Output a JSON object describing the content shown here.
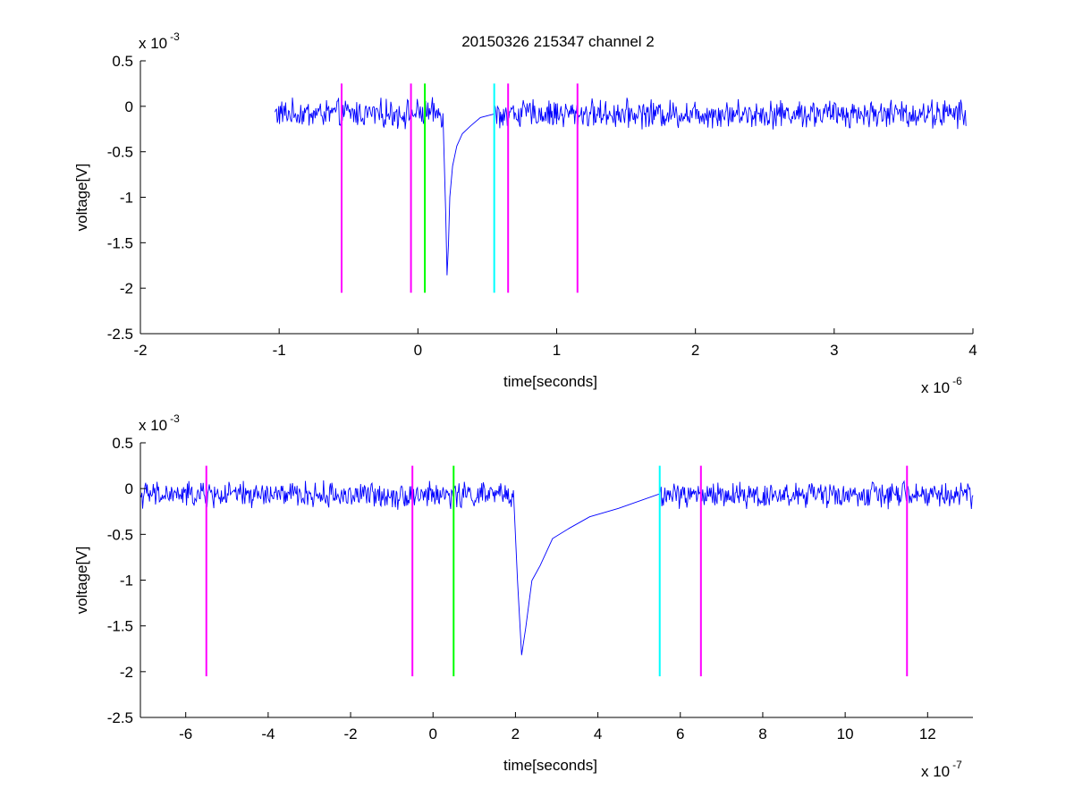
{
  "figure": {
    "title": "20150326 215347 channel 2"
  },
  "chart_data": [
    {
      "type": "line",
      "title": "20150326 215347 channel 2",
      "xlabel": "time[seconds]",
      "ylabel": "voltage[V]",
      "x_exponent_label": "x 10",
      "x_exponent": "-6",
      "y_exponent_label": "x 10",
      "y_exponent": "-3",
      "xlim": [
        -2,
        4
      ],
      "ylim": [
        -2.5,
        0.5
      ],
      "xticks": [
        -2,
        -1,
        0,
        1,
        2,
        3,
        4
      ],
      "yticks": [
        -2.5,
        -2,
        -1.5,
        -1,
        -0.5,
        0,
        0.5
      ],
      "xtick_labels": [
        "-2",
        "-1",
        "0",
        "1",
        "2",
        "3",
        "4"
      ],
      "ytick_labels": [
        "-2.5",
        "-2",
        "-1.5",
        "-1",
        "-0.5",
        "0",
        "0.5"
      ],
      "grid": false,
      "series": [
        {
          "color": "#0000ff",
          "noise_range": [
            -1.03,
            3.95
          ],
          "noise_baseline": -0.08,
          "noise_amplitude": 0.12,
          "points": [
            [
              0.18,
              -0.1
            ],
            [
              0.2,
              -1.2
            ],
            [
              0.21,
              -1.85
            ],
            [
              0.22,
              -1.5
            ],
            [
              0.23,
              -1.0
            ],
            [
              0.25,
              -0.65
            ],
            [
              0.28,
              -0.45
            ],
            [
              0.32,
              -0.3
            ],
            [
              0.38,
              -0.2
            ],
            [
              0.45,
              -0.15
            ],
            [
              0.55,
              -0.1
            ]
          ]
        }
      ],
      "markers": [
        {
          "x": -0.55,
          "y_from": -2.05,
          "y_to": 0.25,
          "color": "#ff00ff"
        },
        {
          "x": -0.05,
          "y_from": -2.05,
          "y_to": 0.25,
          "color": "#ff00ff"
        },
        {
          "x": 0.05,
          "y_from": -2.05,
          "y_to": 0.25,
          "color": "#00ff00"
        },
        {
          "x": 0.55,
          "y_from": -2.05,
          "y_to": 0.25,
          "color": "#00ffff"
        },
        {
          "x": 0.65,
          "y_from": -2.05,
          "y_to": 0.25,
          "color": "#ff00ff"
        },
        {
          "x": 1.15,
          "y_from": -2.05,
          "y_to": 0.25,
          "color": "#ff00ff"
        }
      ]
    },
    {
      "type": "line",
      "title": "",
      "xlabel": "time[seconds]",
      "ylabel": "voltage[V]",
      "x_exponent_label": "x 10",
      "x_exponent": "-7",
      "y_exponent_label": "x 10",
      "y_exponent": "-3",
      "xlim": [
        -7.1,
        13.1
      ],
      "ylim": [
        -2.5,
        0.5
      ],
      "xticks": [
        -6,
        -4,
        -2,
        0,
        2,
        4,
        6,
        8,
        10,
        12
      ],
      "yticks": [
        -2.5,
        -2,
        -1.5,
        -1,
        -0.5,
        0,
        0.5
      ],
      "xtick_labels": [
        "-6",
        "-4",
        "-2",
        "0",
        "2",
        "4",
        "6",
        "8",
        "10",
        "12"
      ],
      "ytick_labels": [
        "-2.5",
        "-2",
        "-1.5",
        "-1",
        "-0.5",
        "0",
        "0.5"
      ],
      "grid": false,
      "series": [
        {
          "color": "#0000ff",
          "noise_range": [
            -7.1,
            13.1
          ],
          "noise_baseline": -0.07,
          "noise_amplitude": 0.11,
          "points": [
            [
              1.95,
              -0.05
            ],
            [
              2.05,
              -1.0
            ],
            [
              2.15,
              -1.85
            ],
            [
              2.25,
              -1.5
            ],
            [
              2.4,
              -1.0
            ],
            [
              2.6,
              -0.8
            ],
            [
              2.9,
              -0.55
            ],
            [
              3.3,
              -0.4
            ],
            [
              3.8,
              -0.28
            ],
            [
              4.5,
              -0.18
            ],
            [
              5.5,
              -0.08
            ]
          ]
        }
      ],
      "markers": [
        {
          "x": -5.5,
          "y_from": -2.05,
          "y_to": 0.25,
          "color": "#ff00ff"
        },
        {
          "x": -0.5,
          "y_from": -2.05,
          "y_to": 0.25,
          "color": "#ff00ff"
        },
        {
          "x": 0.5,
          "y_from": -2.05,
          "y_to": 0.25,
          "color": "#00ff00"
        },
        {
          "x": 5.5,
          "y_from": -2.05,
          "y_to": 0.25,
          "color": "#00ffff"
        },
        {
          "x": 6.5,
          "y_from": -2.05,
          "y_to": 0.25,
          "color": "#ff00ff"
        },
        {
          "x": 11.5,
          "y_from": -2.05,
          "y_to": 0.25,
          "color": "#ff00ff"
        }
      ]
    }
  ]
}
